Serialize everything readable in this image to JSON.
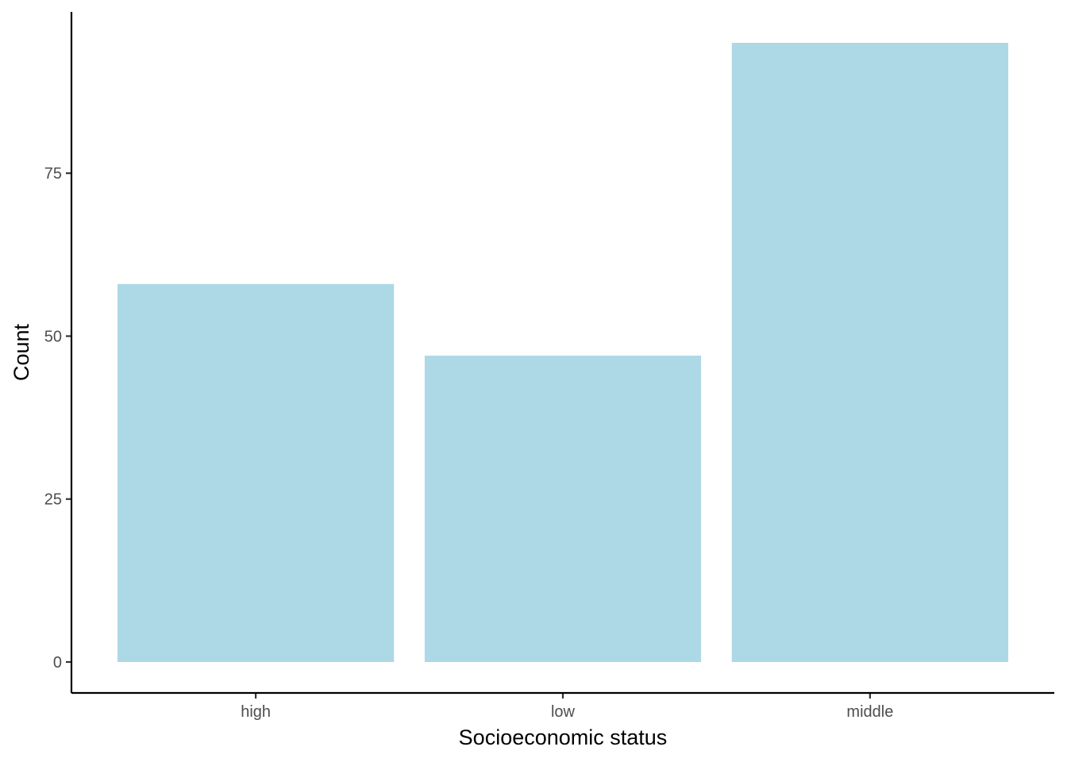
{
  "chart_data": {
    "type": "bar",
    "categories": [
      "high",
      "low",
      "middle"
    ],
    "values": [
      58,
      47,
      95
    ],
    "xlabel": "Socioeconomic status",
    "ylabel": "Count",
    "ylim": [
      -4.75,
      99.75
    ],
    "yticks": [
      0,
      25,
      50,
      75
    ],
    "grid": false,
    "legend": "none",
    "colors": {
      "bar_fill": "#ADD8E6",
      "axis": "#000000",
      "tick_label": "#4D4D4D",
      "background": "#FFFFFF"
    }
  }
}
